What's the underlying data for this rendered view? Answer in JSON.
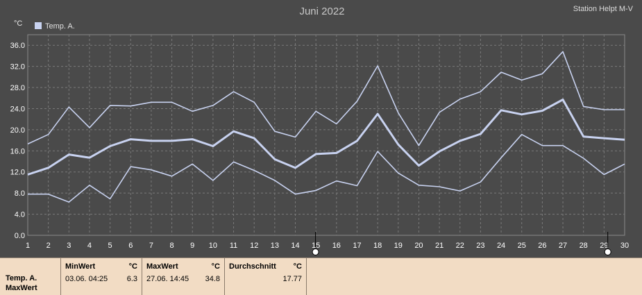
{
  "header": {
    "title": "Juni 2022",
    "station": "Station Helpt M-V",
    "unit": "°C"
  },
  "colors": {
    "background": "#4a4a4a",
    "series": "#c8d2f0",
    "stats_panel": "#f2dcc4"
  },
  "chart_data": {
    "type": "line",
    "title": "Juni 2022",
    "xlabel": "",
    "ylabel": "°C",
    "x": [
      1,
      2,
      3,
      4,
      5,
      6,
      7,
      8,
      9,
      10,
      11,
      12,
      13,
      14,
      15,
      16,
      17,
      18,
      19,
      20,
      21,
      22,
      23,
      24,
      25,
      26,
      27,
      28,
      29,
      30
    ],
    "x_ticks": [
      "1",
      "2",
      "3",
      "4",
      "5",
      "6",
      "7",
      "8",
      "9",
      "10",
      "11",
      "12",
      "13",
      "14",
      "15",
      "16",
      "17",
      "18",
      "19",
      "20",
      "21",
      "22",
      "23",
      "24",
      "25",
      "26",
      "27",
      "28",
      "29",
      "30"
    ],
    "y_ticks": [
      "0.0",
      "4.0",
      "8.0",
      "12.0",
      "16.0",
      "20.0",
      "24.0",
      "28.0",
      "32.0",
      "36.0"
    ],
    "ylim": [
      0,
      38
    ],
    "grid": true,
    "legend": {
      "placement": "top-left",
      "entries": [
        "Temp. A."
      ]
    },
    "series": [
      {
        "role": "max",
        "values": [
          17.3,
          19.1,
          24.3,
          20.4,
          24.6,
          24.5,
          25.2,
          25.2,
          23.5,
          24.6,
          27.2,
          25.2,
          19.7,
          18.6,
          23.5,
          21.1,
          25.4,
          32.1,
          23.2,
          17.0,
          23.3,
          25.8,
          27.2,
          30.9,
          29.4,
          30.6,
          34.8,
          24.4,
          23.8,
          23.8
        ]
      },
      {
        "role": "mean",
        "values": [
          11.5,
          12.8,
          15.3,
          14.7,
          16.9,
          18.2,
          17.9,
          17.9,
          18.2,
          16.9,
          19.7,
          18.4,
          14.4,
          12.8,
          15.4,
          15.6,
          17.9,
          23.0,
          17.2,
          13.2,
          15.9,
          17.9,
          19.2,
          23.7,
          22.9,
          23.6,
          25.7,
          18.7,
          18.4,
          18.1
        ]
      },
      {
        "role": "min",
        "values": [
          7.8,
          7.8,
          6.3,
          9.5,
          6.9,
          13.0,
          12.4,
          11.2,
          13.5,
          10.4,
          13.9,
          12.3,
          10.4,
          7.8,
          8.5,
          10.3,
          9.4,
          15.9,
          11.8,
          9.5,
          9.2,
          8.4,
          10.1,
          14.7,
          19.1,
          17.0,
          17.0,
          14.6,
          11.5,
          13.5
        ]
      }
    ],
    "markers": [
      {
        "x": 14.98,
        "shape": "open-circle"
      },
      {
        "x": 29.18,
        "shape": "filled-circle"
      }
    ]
  },
  "stats": {
    "row_labels": [
      "Temp. A.",
      "MaxWert"
    ],
    "columns": [
      {
        "header": "MinWert",
        "unit": "°C",
        "datetime": "03.06.  04:25",
        "value": "6.3"
      },
      {
        "header": "MaxWert",
        "unit": "°C",
        "datetime": "27.06.  14:45",
        "value": "34.8"
      },
      {
        "header": "Durchschnitt",
        "unit": "°C",
        "datetime": "",
        "value": "17.77"
      }
    ]
  }
}
